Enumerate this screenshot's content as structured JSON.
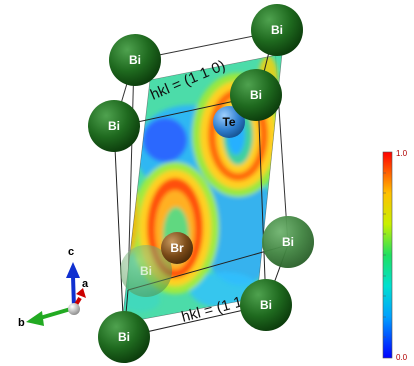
{
  "plane": {
    "label_top": "hkl = (1 1 0)",
    "label_bottom": "hkl = (1 1 0)"
  },
  "atoms": {
    "bi": "Bi",
    "te": "Te",
    "br": "Br"
  },
  "axes": {
    "a": "a",
    "b": "b",
    "c": "c"
  },
  "colorbar": {
    "max": "1.0",
    "min": "0.0"
  },
  "colors": {
    "bi": "#1f5f1f",
    "te": "#2f7fd0",
    "br": "#7a4a18",
    "axis_a": "#cc0000",
    "axis_b": "#22aa22",
    "axis_c": "#1030d0"
  }
}
